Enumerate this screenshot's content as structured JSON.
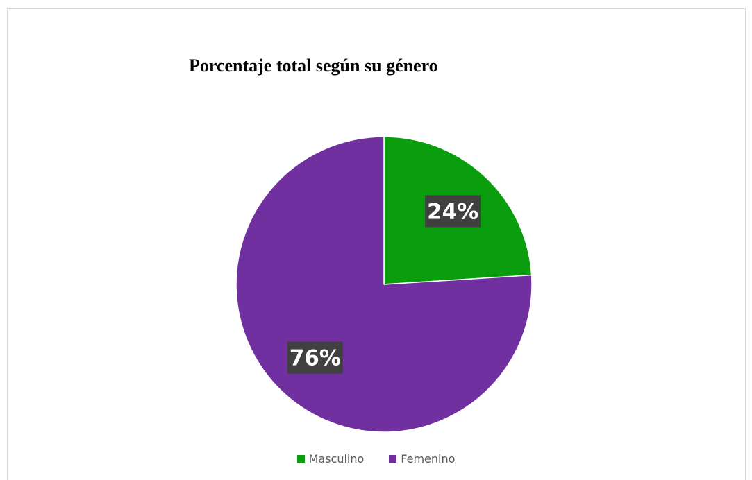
{
  "chart_data": {
    "type": "pie",
    "title": "Porcentaje total según su género",
    "categories": [
      "Masculino",
      "Femenino"
    ],
    "values": [
      24,
      76
    ],
    "data_labels": [
      "24%",
      "76%"
    ],
    "colors": [
      "#0a9e0f",
      "#7030a0"
    ],
    "label_background": "#404040",
    "label_color": "#ffffff",
    "legend_position": "bottom",
    "start_angle": "12 o'clock, clockwise"
  }
}
